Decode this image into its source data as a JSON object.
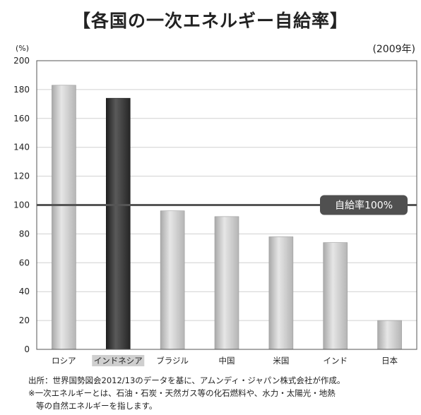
{
  "chart_data": {
    "type": "bar",
    "title": "【各国の一次エネルギー自給率】",
    "unit_label": "(%)",
    "year_label": "(2009年)",
    "categories": [
      "ロシア",
      "インドネシア",
      "ブラジル",
      "中国",
      "米国",
      "インド",
      "日本"
    ],
    "values": [
      183,
      174,
      96,
      92,
      78,
      74,
      20
    ],
    "highlight_index": 1,
    "ylim": [
      0,
      200
    ],
    "yticks": [
      "0",
      "20",
      "40",
      "60",
      "80",
      "100",
      "120",
      "140",
      "160",
      "180",
      "200"
    ],
    "reference_line": {
      "value": 100,
      "label": "自給率100%"
    },
    "grid": true,
    "colors": {
      "bar": "#c9c9c9",
      "highlight_bar": "#3a3a3a",
      "reference": "#555555"
    }
  },
  "notes": {
    "source": "出所：世界国勢図会2012/13のデータを基に、アムンディ・ジャパン株式会社が作成。",
    "footnote_1": "※一次エネルギーとは、石油・石炭・天然ガス等の化石燃料や、水力・太陽光・地熱",
    "footnote_2": "等の自然エネルギーを指します。"
  }
}
